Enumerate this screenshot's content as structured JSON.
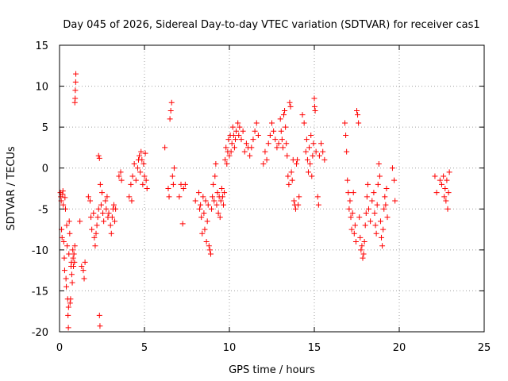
{
  "chart_data": {
    "type": "scatter",
    "title": "Day 045 of 2026, Sidereal Day-to-day VTEC variation (SDTVAR) for receiver cas1",
    "xlabel": "GPS time / hours",
    "ylabel": "SDTVAR / TECUs",
    "xlim": [
      0,
      25
    ],
    "ylim": [
      -20,
      15
    ],
    "x_ticks": [
      0,
      5,
      10,
      15,
      20,
      25
    ],
    "y_ticks": [
      -20,
      -15,
      -10,
      -5,
      0,
      5,
      10,
      15
    ],
    "grid": true,
    "marker": "+",
    "color": "#ff0000",
    "points": [
      [
        0.05,
        -3.0
      ],
      [
        0.08,
        -3.5
      ],
      [
        0.1,
        -4.0
      ],
      [
        0.12,
        -7.5
      ],
      [
        0.15,
        -8.5
      ],
      [
        0.18,
        -3.2
      ],
      [
        0.2,
        -2.8
      ],
      [
        0.22,
        -4.5
      ],
      [
        0.25,
        -9.0
      ],
      [
        0.28,
        -11.0
      ],
      [
        0.3,
        -12.5
      ],
      [
        0.32,
        -3.6
      ],
      [
        0.35,
        -5.0
      ],
      [
        0.38,
        -13.5
      ],
      [
        0.4,
        -14.5
      ],
      [
        0.42,
        -7.0
      ],
      [
        0.45,
        -9.5
      ],
      [
        0.48,
        -16.0
      ],
      [
        0.5,
        -18.0
      ],
      [
        0.52,
        -19.5
      ],
      [
        0.53,
        -17.0
      ],
      [
        0.55,
        -10.5
      ],
      [
        0.57,
        -6.5
      ],
      [
        0.6,
        -8.0
      ],
      [
        0.62,
        -16.5
      ],
      [
        0.65,
        -16.0
      ],
      [
        0.68,
        -12.0
      ],
      [
        0.7,
        -11.5
      ],
      [
        0.72,
        -13.0
      ],
      [
        0.75,
        -14.0
      ],
      [
        0.78,
        -10.0
      ],
      [
        0.8,
        -11.0
      ],
      [
        0.82,
        -12.0
      ],
      [
        0.85,
        -10.5
      ],
      [
        0.88,
        -11.5
      ],
      [
        0.9,
        -9.5
      ],
      [
        0.9,
        8.0
      ],
      [
        0.92,
        8.5
      ],
      [
        0.93,
        9.5
      ],
      [
        0.95,
        10.5
      ],
      [
        0.96,
        11.5
      ],
      [
        1.2,
        -6.5
      ],
      [
        1.3,
        -12.0
      ],
      [
        1.4,
        -12.5
      ],
      [
        1.45,
        -13.5
      ],
      [
        1.5,
        -11.5
      ],
      [
        1.7,
        -3.5
      ],
      [
        1.8,
        -4.0
      ],
      [
        1.85,
        -6.0
      ],
      [
        1.9,
        -7.5
      ],
      [
        2.0,
        -5.5
      ],
      [
        2.05,
        -8.5
      ],
      [
        2.1,
        -9.5
      ],
      [
        2.15,
        -8.0
      ],
      [
        2.2,
        -7.0
      ],
      [
        2.25,
        -6.0
      ],
      [
        2.3,
        -5.0
      ],
      [
        2.3,
        1.5
      ],
      [
        2.35,
        1.2
      ],
      [
        2.35,
        -18.0
      ],
      [
        2.38,
        -19.3
      ],
      [
        2.4,
        -2.0
      ],
      [
        2.45,
        -4.5
      ],
      [
        2.5,
        -3.0
      ],
      [
        2.55,
        -5.5
      ],
      [
        2.6,
        -6.5
      ],
      [
        2.7,
        -4.0
      ],
      [
        2.75,
        -5.0
      ],
      [
        2.8,
        -3.5
      ],
      [
        2.85,
        -6.0
      ],
      [
        2.9,
        -5.5
      ],
      [
        3.0,
        -7.0
      ],
      [
        3.05,
        -8.0
      ],
      [
        3.1,
        -6.0
      ],
      [
        3.15,
        -5.0
      ],
      [
        3.2,
        -4.5
      ],
      [
        3.25,
        -6.5
      ],
      [
        3.3,
        -5.0
      ],
      [
        3.5,
        -1.0
      ],
      [
        3.6,
        -0.5
      ],
      [
        3.65,
        -1.5
      ],
      [
        4.1,
        -3.5
      ],
      [
        4.2,
        -2.0
      ],
      [
        4.25,
        -4.0
      ],
      [
        4.3,
        -1.0
      ],
      [
        4.4,
        0.5
      ],
      [
        4.5,
        -1.5
      ],
      [
        4.6,
        0.0
      ],
      [
        4.65,
        1.0
      ],
      [
        4.7,
        1.5
      ],
      [
        4.75,
        -0.5
      ],
      [
        4.8,
        2.0
      ],
      [
        4.85,
        1.0
      ],
      [
        4.9,
        -2.0
      ],
      [
        4.95,
        0.5
      ],
      [
        5.0,
        -1.0
      ],
      [
        5.05,
        1.8
      ],
      [
        5.1,
        -1.5
      ],
      [
        5.15,
        -2.5
      ],
      [
        6.2,
        2.5
      ],
      [
        6.4,
        -2.5
      ],
      [
        6.45,
        -3.5
      ],
      [
        6.5,
        6.0
      ],
      [
        6.55,
        7.0
      ],
      [
        6.6,
        8.0
      ],
      [
        6.65,
        -1.0
      ],
      [
        6.7,
        -2.0
      ],
      [
        6.75,
        0.0
      ],
      [
        7.05,
        -3.5
      ],
      [
        7.15,
        -2.0
      ],
      [
        7.25,
        -6.8
      ],
      [
        7.3,
        -2.5
      ],
      [
        7.4,
        -2.0
      ],
      [
        8.0,
        -4.0
      ],
      [
        8.2,
        -3.0
      ],
      [
        8.25,
        -5.0
      ],
      [
        8.3,
        -4.5
      ],
      [
        8.35,
        -6.0
      ],
      [
        8.4,
        -8.0
      ],
      [
        8.45,
        -3.5
      ],
      [
        8.5,
        -5.5
      ],
      [
        8.55,
        -7.5
      ],
      [
        8.6,
        -4.0
      ],
      [
        8.65,
        -9.0
      ],
      [
        8.7,
        -6.5
      ],
      [
        8.75,
        -4.5
      ],
      [
        8.8,
        -9.5
      ],
      [
        8.85,
        -10.0
      ],
      [
        8.9,
        -10.5
      ],
      [
        8.95,
        -5.0
      ],
      [
        9.0,
        -3.5
      ],
      [
        9.05,
        -2.0
      ],
      [
        9.1,
        -4.0
      ],
      [
        9.15,
        -1.0
      ],
      [
        9.2,
        0.5
      ],
      [
        9.25,
        -4.5
      ],
      [
        9.3,
        -3.0
      ],
      [
        9.35,
        -5.5
      ],
      [
        9.4,
        -3.5
      ],
      [
        9.45,
        -6.0
      ],
      [
        9.5,
        -4.0
      ],
      [
        9.55,
        -2.5
      ],
      [
        9.6,
        -3.5
      ],
      [
        9.65,
        -4.5
      ],
      [
        9.7,
        -3.0
      ],
      [
        9.75,
        1.0
      ],
      [
        9.8,
        2.5
      ],
      [
        9.85,
        0.5
      ],
      [
        9.9,
        2.0
      ],
      [
        9.95,
        3.5
      ],
      [
        10.0,
        1.5
      ],
      [
        10.05,
        4.0
      ],
      [
        10.1,
        2.0
      ],
      [
        10.15,
        3.0
      ],
      [
        10.2,
        5.0
      ],
      [
        10.25,
        4.0
      ],
      [
        10.3,
        2.5
      ],
      [
        10.35,
        3.5
      ],
      [
        10.4,
        4.5
      ],
      [
        10.5,
        5.5
      ],
      [
        10.55,
        4.0
      ],
      [
        10.6,
        5.0
      ],
      [
        10.7,
        3.5
      ],
      [
        10.8,
        4.5
      ],
      [
        10.9,
        2.0
      ],
      [
        11.0,
        3.0
      ],
      [
        11.1,
        2.5
      ],
      [
        11.2,
        1.5
      ],
      [
        11.3,
        2.5
      ],
      [
        11.4,
        3.5
      ],
      [
        11.5,
        4.5
      ],
      [
        11.6,
        5.5
      ],
      [
        11.7,
        4.0
      ],
      [
        12.0,
        0.5
      ],
      [
        12.1,
        2.0
      ],
      [
        12.2,
        1.0
      ],
      [
        12.3,
        3.0
      ],
      [
        12.4,
        4.0
      ],
      [
        12.5,
        5.5
      ],
      [
        12.6,
        4.5
      ],
      [
        12.7,
        3.5
      ],
      [
        12.8,
        2.5
      ],
      [
        12.9,
        3.0
      ],
      [
        13.0,
        6.0
      ],
      [
        13.05,
        4.5
      ],
      [
        13.1,
        3.5
      ],
      [
        13.15,
        2.5
      ],
      [
        13.2,
        6.5
      ],
      [
        13.25,
        7.0
      ],
      [
        13.3,
        5.0
      ],
      [
        13.35,
        3.0
      ],
      [
        13.4,
        1.5
      ],
      [
        13.45,
        -1.0
      ],
      [
        13.5,
        -2.0
      ],
      [
        13.55,
        8.0
      ],
      [
        13.6,
        7.5
      ],
      [
        13.65,
        -0.5
      ],
      [
        13.7,
        -1.5
      ],
      [
        13.75,
        1.0
      ],
      [
        13.8,
        -4.0
      ],
      [
        13.85,
        -4.5
      ],
      [
        13.9,
        -5.0
      ],
      [
        13.95,
        0.5
      ],
      [
        14.0,
        1.0
      ],
      [
        14.05,
        -4.5
      ],
      [
        14.1,
        -3.5
      ],
      [
        14.3,
        6.5
      ],
      [
        14.4,
        5.5
      ],
      [
        14.5,
        2.0
      ],
      [
        14.55,
        3.5
      ],
      [
        14.6,
        1.0
      ],
      [
        14.65,
        -0.5
      ],
      [
        14.7,
        2.5
      ],
      [
        14.75,
        0.5
      ],
      [
        14.8,
        4.0
      ],
      [
        14.85,
        -1.0
      ],
      [
        14.9,
        1.5
      ],
      [
        14.95,
        3.0
      ],
      [
        15.0,
        8.5
      ],
      [
        15.02,
        7.5
      ],
      [
        15.05,
        7.0
      ],
      [
        15.1,
        2.0
      ],
      [
        15.2,
        -3.5
      ],
      [
        15.25,
        -4.5
      ],
      [
        15.3,
        1.5
      ],
      [
        15.4,
        3.0
      ],
      [
        15.5,
        2.0
      ],
      [
        15.6,
        1.0
      ],
      [
        16.8,
        5.5
      ],
      [
        16.85,
        4.0
      ],
      [
        16.9,
        2.0
      ],
      [
        16.95,
        -1.5
      ],
      [
        17.0,
        -3.0
      ],
      [
        17.05,
        -5.0
      ],
      [
        17.1,
        -4.0
      ],
      [
        17.15,
        -6.0
      ],
      [
        17.2,
        -7.5
      ],
      [
        17.25,
        -5.5
      ],
      [
        17.3,
        -3.0
      ],
      [
        17.35,
        -8.0
      ],
      [
        17.4,
        -7.0
      ],
      [
        17.45,
        -9.0
      ],
      [
        17.5,
        7.0
      ],
      [
        17.55,
        6.5
      ],
      [
        17.6,
        5.5
      ],
      [
        17.65,
        -6.0
      ],
      [
        17.7,
        -8.5
      ],
      [
        17.75,
        -10.0
      ],
      [
        17.8,
        -9.5
      ],
      [
        17.85,
        -11.0
      ],
      [
        17.9,
        -10.5
      ],
      [
        17.95,
        -9.0
      ],
      [
        18.0,
        -7.0
      ],
      [
        18.05,
        -5.5
      ],
      [
        18.1,
        -3.5
      ],
      [
        18.15,
        -2.0
      ],
      [
        18.2,
        -5.0
      ],
      [
        18.3,
        -6.5
      ],
      [
        18.4,
        -4.0
      ],
      [
        18.5,
        -3.0
      ],
      [
        18.55,
        -5.5
      ],
      [
        18.6,
        -7.0
      ],
      [
        18.65,
        -8.0
      ],
      [
        18.7,
        -4.5
      ],
      [
        18.75,
        -2.0
      ],
      [
        18.8,
        0.5
      ],
      [
        18.85,
        -1.0
      ],
      [
        18.9,
        -6.5
      ],
      [
        18.95,
        -8.5
      ],
      [
        19.0,
        -9.5
      ],
      [
        19.05,
        -7.5
      ],
      [
        19.1,
        -5.0
      ],
      [
        19.15,
        -3.5
      ],
      [
        19.2,
        -4.5
      ],
      [
        19.25,
        -2.5
      ],
      [
        19.3,
        -6.0
      ],
      [
        19.6,
        0.0
      ],
      [
        19.7,
        -1.5
      ],
      [
        19.75,
        -4.0
      ],
      [
        22.1,
        -1.0
      ],
      [
        22.2,
        -3.0
      ],
      [
        22.4,
        -1.5
      ],
      [
        22.5,
        -2.0
      ],
      [
        22.6,
        -1.0
      ],
      [
        22.65,
        -3.5
      ],
      [
        22.7,
        -2.5
      ],
      [
        22.75,
        -4.0
      ],
      [
        22.8,
        -1.5
      ],
      [
        22.85,
        -5.0
      ],
      [
        22.9,
        -3.0
      ],
      [
        22.95,
        -0.5
      ]
    ]
  }
}
